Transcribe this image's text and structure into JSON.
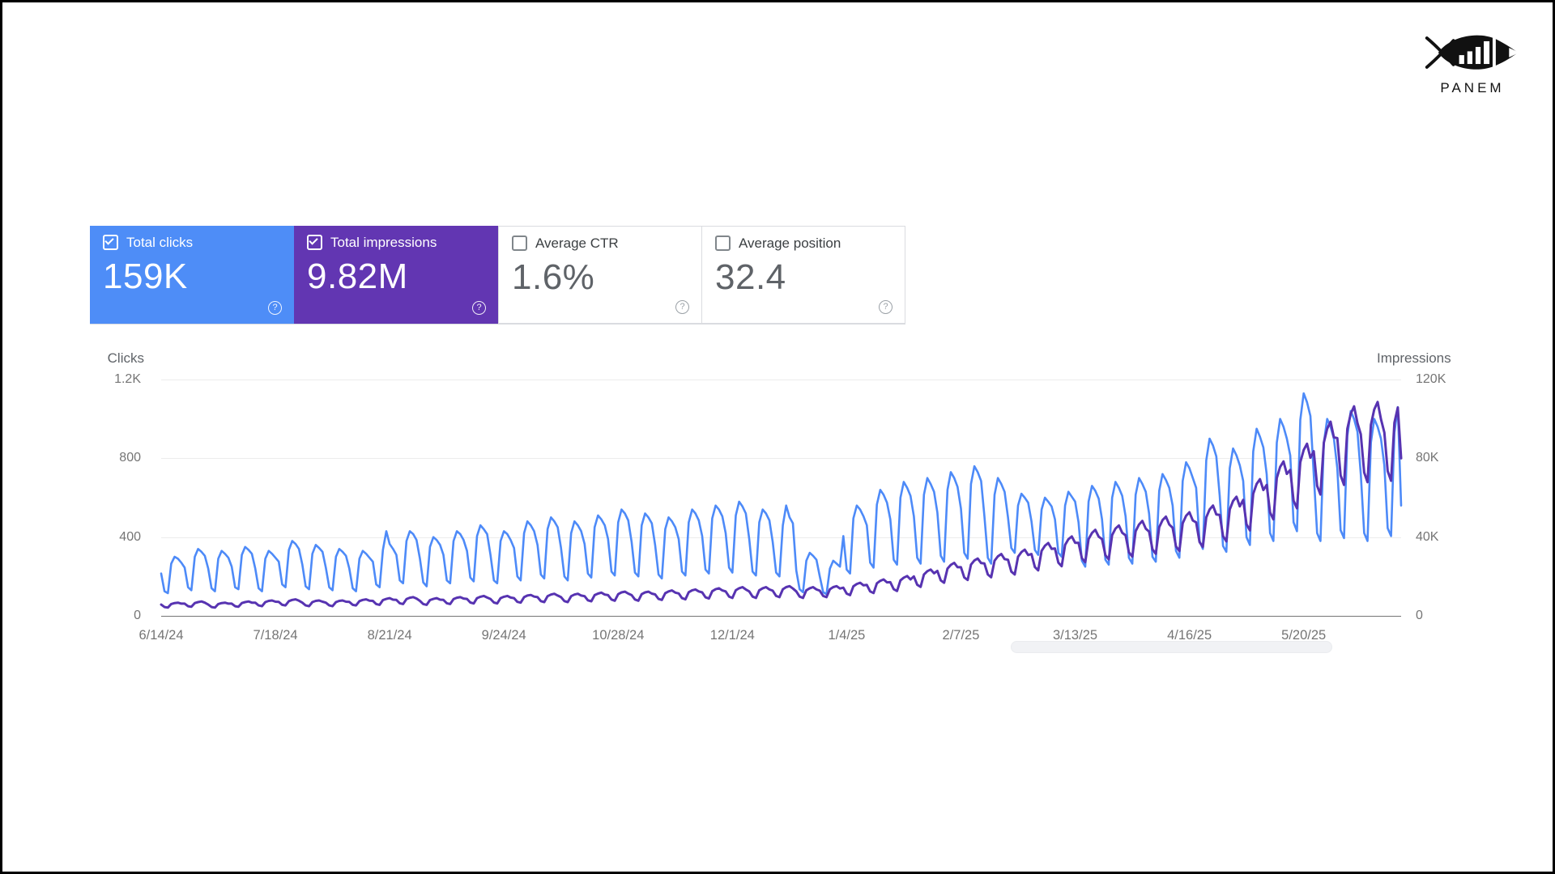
{
  "logo": {
    "brand": "PANEM"
  },
  "icons": {
    "help": "?",
    "checkbox_checked": "checked",
    "checkbox_unchecked": "unchecked"
  },
  "colors": {
    "clicks_card": "#4e8df7",
    "impressions_card": "#6236b2",
    "clicks_line": "#4d8af8",
    "impressions_line": "#5733b1",
    "axis_text": "#757575",
    "gridline": "#ececec"
  },
  "cards": [
    {
      "label": "Total clicks",
      "value": "159K",
      "checked": true
    },
    {
      "label": "Total impressions",
      "value": "9.82M",
      "checked": true
    },
    {
      "label": "Average CTR",
      "value": "1.6%",
      "checked": false
    },
    {
      "label": "Average position",
      "value": "32.4",
      "checked": false
    }
  ],
  "chart_data": {
    "type": "line",
    "grid": true,
    "left_axis": {
      "label": "Clicks",
      "max": 1200,
      "ticks": [
        "1.2K",
        "800",
        "400",
        "0"
      ]
    },
    "right_axis": {
      "label": "Impressions",
      "max": 120000,
      "ticks": [
        "120K",
        "80K",
        "40K",
        "0"
      ]
    },
    "x_ticks": [
      "6/14/24",
      "7/18/24",
      "8/21/24",
      "9/24/24",
      "10/28/24",
      "12/1/24",
      "1/4/25",
      "2/7/25",
      "3/13/25",
      "4/16/25",
      "5/20/25"
    ],
    "x_tick_day_offsets": [
      0,
      34,
      68,
      102,
      136,
      170,
      204,
      238,
      272,
      306,
      340
    ],
    "total_days": 370,
    "series": [
      {
        "name": "Clicks",
        "axis": "left",
        "color": "#4d8af8",
        "values": [
          215,
          125,
          115,
          265,
          300,
          290,
          270,
          245,
          145,
          130,
          300,
          340,
          325,
          305,
          240,
          140,
          125,
          290,
          330,
          315,
          295,
          250,
          145,
          135,
          310,
          350,
          335,
          315,
          240,
          140,
          125,
          290,
          330,
          315,
          295,
          275,
          160,
          145,
          335,
          380,
          365,
          340,
          260,
          150,
          135,
          315,
          360,
          345,
          325,
          245,
          145,
          130,
          300,
          340,
          325,
          305,
          240,
          140,
          125,
          290,
          330,
          315,
          295,
          275,
          160,
          145,
          335,
          430,
          365,
          340,
          310,
          180,
          165,
          380,
          430,
          415,
          385,
          290,
          170,
          150,
          350,
          400,
          385,
          360,
          310,
          180,
          165,
          380,
          430,
          415,
          385,
          330,
          195,
          175,
          405,
          460,
          440,
          415,
          310,
          180,
          165,
          380,
          430,
          415,
          385,
          345,
          200,
          180,
          420,
          480,
          460,
          430,
          360,
          210,
          190,
          440,
          500,
          480,
          450,
          345,
          200,
          180,
          420,
          480,
          460,
          430,
          365,
          215,
          195,
          450,
          510,
          490,
          460,
          390,
          225,
          205,
          475,
          540,
          520,
          485,
          375,
          220,
          200,
          460,
          520,
          500,
          470,
          360,
          210,
          190,
          440,
          500,
          480,
          450,
          390,
          225,
          205,
          475,
          540,
          520,
          485,
          405,
          235,
          215,
          495,
          560,
          540,
          505,
          420,
          245,
          220,
          510,
          580,
          555,
          520,
          390,
          225,
          205,
          475,
          540,
          520,
          485,
          375,
          220,
          200,
          460,
          560,
          500,
          470,
          230,
          135,
          120,
          280,
          320,
          305,
          285,
          200,
          120,
          110,
          240,
          280,
          265,
          250,
          405,
          235,
          215,
          495,
          560,
          540,
          505,
          460,
          270,
          245,
          565,
          640,
          615,
          575,
          490,
          285,
          260,
          600,
          680,
          650,
          610,
          505,
          295,
          265,
          615,
          700,
          670,
          630,
          525,
          305,
          275,
          640,
          730,
          700,
          655,
          545,
          320,
          290,
          670,
          760,
          730,
          685,
          505,
          295,
          265,
          615,
          700,
          670,
          630,
          500,
          345,
          320,
          560,
          620,
          600,
          575,
          480,
          335,
          310,
          540,
          600,
          580,
          555,
          490,
          320,
          300,
          560,
          630,
          605,
          580,
          475,
          280,
          250,
          580,
          660,
          635,
          595,
          490,
          285,
          260,
          600,
          680,
          650,
          610,
          505,
          295,
          265,
          615,
          700,
          670,
          630,
          520,
          300,
          275,
          635,
          720,
          690,
          650,
          560,
          330,
          295,
          685,
          780,
          750,
          700,
          650,
          380,
          340,
          790,
          900,
          865,
          810,
          610,
          355,
          325,
          750,
          850,
          815,
          765,
          685,
          400,
          360,
          835,
          950,
          910,
          855,
          720,
          420,
          380,
          880,
          1000,
          960,
          900,
          815,
          475,
          430,
          995,
          1130,
          1085,
          1015,
          720,
          420,
          380,
          880,
          1000,
          960,
          900,
          750,
          435,
          395,
          915,
          1040,
          1000,
          935,
          720,
          420,
          380,
          880,
          1000,
          960,
          900,
          765,
          445,
          405,
          930,
          1060,
          560
        ]
      },
      {
        "name": "Impressions",
        "axis": "right",
        "color": "#5733b1",
        "values": [
          5700,
          4500,
          4200,
          6000,
          6500,
          6700,
          6200,
          6200,
          4900,
          4600,
          6500,
          7000,
          7300,
          6700,
          5700,
          4500,
          4200,
          6000,
          6500,
          6700,
          6200,
          6200,
          4900,
          4600,
          6500,
          7000,
          7300,
          6700,
          6700,
          5300,
          4900,
          7000,
          7600,
          7800,
          7200,
          7100,
          5600,
          5300,
          7500,
          8100,
          8400,
          7700,
          6700,
          5300,
          4900,
          7000,
          7600,
          7800,
          7200,
          6700,
          5300,
          4900,
          7000,
          7600,
          7800,
          7200,
          7100,
          5600,
          5300,
          7500,
          8100,
          8400,
          7700,
          7600,
          6000,
          5600,
          8000,
          8600,
          9000,
          8200,
          8100,
          6400,
          6000,
          8500,
          9200,
          9500,
          8800,
          7600,
          6000,
          5600,
          8000,
          8600,
          9000,
          8200,
          8100,
          6400,
          6000,
          8500,
          9200,
          9500,
          8800,
          8600,
          6800,
          6300,
          9000,
          9700,
          10100,
          9300,
          8600,
          6800,
          6300,
          9000,
          9700,
          10100,
          9300,
          9000,
          7100,
          6700,
          9500,
          10300,
          10600,
          9800,
          9500,
          7500,
          7000,
          10000,
          10800,
          11200,
          10300,
          9500,
          7500,
          7000,
          10000,
          10800,
          11200,
          10300,
          10000,
          7900,
          7400,
          10500,
          11300,
          11800,
          10800,
          10500,
          8300,
          7700,
          11000,
          11900,
          12300,
          11300,
          10500,
          8300,
          7700,
          11000,
          11900,
          12300,
          11300,
          10900,
          8600,
          8100,
          11500,
          12400,
          12900,
          11800,
          11400,
          9000,
          8400,
          12000,
          13000,
          13400,
          12400,
          11900,
          9400,
          8800,
          12500,
          13500,
          14000,
          12900,
          12400,
          9800,
          9100,
          13000,
          14000,
          14600,
          13400,
          12400,
          9800,
          9100,
          13000,
          14000,
          14600,
          13400,
          12800,
          10100,
          9500,
          13500,
          14600,
          15100,
          13900,
          12400,
          9800,
          9100,
          13000,
          14000,
          14600,
          13400,
          12800,
          10100,
          9500,
          13500,
          14600,
          15100,
          13900,
          14300,
          11300,
          10500,
          15000,
          16200,
          16800,
          15500,
          15700,
          12400,
          11600,
          16500,
          17800,
          18500,
          17000,
          17100,
          13500,
          12600,
          18000,
          19400,
          20200,
          18500,
          20000,
          15800,
          14700,
          21000,
          22700,
          23500,
          21600,
          22800,
          18000,
          16800,
          24000,
          25900,
          26900,
          24700,
          24700,
          19500,
          18200,
          26000,
          28100,
          29100,
          26800,
          26600,
          21000,
          19600,
          28000,
          30200,
          31400,
          28800,
          28500,
          22500,
          21000,
          30000,
          32400,
          33600,
          30900,
          31400,
          24800,
          23100,
          33000,
          35600,
          37000,
          34000,
          34200,
          27000,
          25200,
          36000,
          38900,
          40300,
          37100,
          37100,
          29300,
          27300,
          39000,
          42100,
          43700,
          40200,
          39000,
          30800,
          28700,
          41000,
          44300,
          45900,
          42200,
          40900,
          32300,
          30100,
          43000,
          46400,
          48200,
          44300,
          42800,
          33800,
          31500,
          45000,
          48600,
          50400,
          46400,
          44700,
          35300,
          32900,
          47000,
          50800,
          52600,
          48400,
          47500,
          37500,
          35000,
          50000,
          54000,
          56000,
          51500,
          51300,
          40500,
          37800,
          54000,
          58300,
          60500,
          55600,
          58900,
          46500,
          43400,
          62000,
          67000,
          69400,
          63900,
          66500,
          52500,
          49000,
          70000,
          75600,
          78400,
          72100,
          74100,
          58500,
          54600,
          78000,
          84200,
          87400,
          80300,
          83600,
          66000,
          61600,
          88000,
          95000,
          98600,
          90600,
          90300,
          71300,
          66500,
          95000,
          102600,
          106400,
          97900,
          92200,
          72800,
          67900,
          97000,
          104800,
          108600,
          99900,
          93100,
          73500,
          68600,
          98000,
          105800,
          80000
        ]
      }
    ]
  }
}
